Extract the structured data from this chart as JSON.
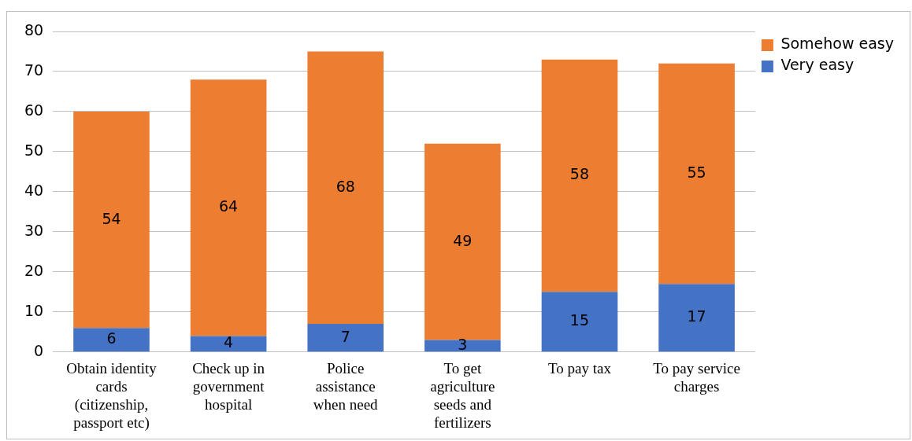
{
  "chart_data": {
    "type": "bar",
    "stacked": true,
    "categories": [
      "Obtain identity cards (citizenship, passport etc)",
      "Check up in government hospital",
      "Police assistance when need",
      "To get agriculture seeds and fertilizers",
      "To pay tax",
      "To pay service charges"
    ],
    "series": [
      {
        "name": "Very easy",
        "color": "#4472c4",
        "values": [
          6,
          4,
          7,
          3,
          15,
          17
        ]
      },
      {
        "name": "Somehow easy",
        "color": "#ed7d31",
        "values": [
          54,
          64,
          68,
          49,
          58,
          55
        ]
      }
    ],
    "ylim": [
      0,
      80
    ],
    "yticks": [
      0,
      10,
      20,
      30,
      40,
      50,
      60,
      70,
      80
    ],
    "grid": "y",
    "legend": "right",
    "data_labels": true
  }
}
